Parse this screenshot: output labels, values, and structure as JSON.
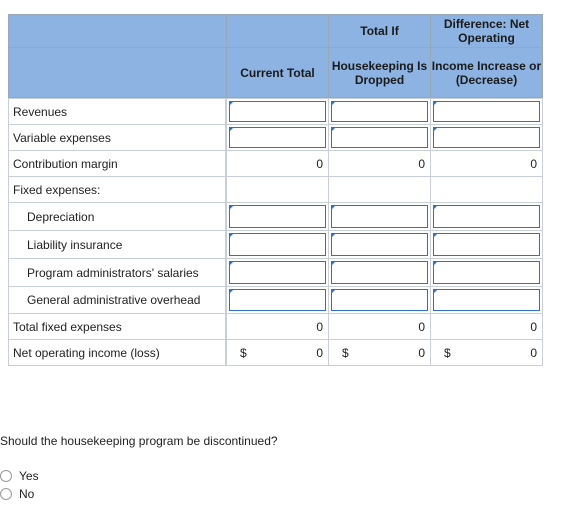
{
  "headers": {
    "col1": "Current Total",
    "col2_top": "Total If",
    "col2_bottom": "Housekeeping Is Dropped",
    "col3_top": "Difference: Net Operating",
    "col3_bottom": "Income Increase or (Decrease)"
  },
  "rows": [
    {
      "label": "Revenues"
    },
    {
      "label": "Variable expenses"
    },
    {
      "label": "Contribution margin",
      "v1": "0",
      "v2": "0",
      "v3": "0"
    },
    {
      "label": "Fixed expenses:"
    },
    {
      "label": "Depreciation"
    },
    {
      "label": "Liability insurance"
    },
    {
      "label": "Program administrators' salaries"
    },
    {
      "label": "General administrative overhead"
    },
    {
      "label": "Total fixed expenses",
      "v1": "0",
      "v2": "0",
      "v3": "0"
    },
    {
      "label": "Net operating income (loss)",
      "v1": "0",
      "v2": "0",
      "v3": "0",
      "currency": "$"
    }
  ],
  "question": "Should the housekeeping program be discontinued?",
  "options": [
    "Yes",
    "No"
  ]
}
